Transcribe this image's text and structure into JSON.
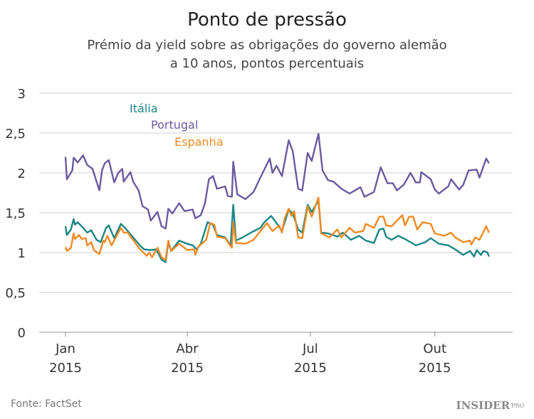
{
  "chart_data": {
    "type": "line",
    "title": "Ponto de pressão",
    "subtitle": [
      "Prémio da yield sobre as obrigações do governo alemão",
      "a 10 anos, pontos percentuais"
    ],
    "xlabel": "",
    "ylabel": "",
    "ylim": [
      0,
      3
    ],
    "xlim": [
      "2015-01-01",
      "2015-11-10"
    ],
    "grid": true,
    "legend_placement": "top-left, inline",
    "y_ticks": [
      {
        "value": 0,
        "label": "0"
      },
      {
        "value": 0.5,
        "label": "0,5"
      },
      {
        "value": 1,
        "label": "1"
      },
      {
        "value": 1.5,
        "label": "1,5"
      },
      {
        "value": 2,
        "label": "2"
      },
      {
        "value": 2.5,
        "label": "2,5"
      },
      {
        "value": 3,
        "label": "3"
      }
    ],
    "x_ticks": [
      {
        "date": "2015-01-01",
        "label": "Jan",
        "year": "2015"
      },
      {
        "date": "2015-04-01",
        "label": "Abr",
        "year": "2015"
      },
      {
        "date": "2015-07-01",
        "label": "Jul",
        "year": "2015"
      },
      {
        "date": "2015-10-01",
        "label": "Out",
        "year": "2015"
      }
    ],
    "series": [
      {
        "name": "Itália",
        "color": "#1b8585",
        "points": [
          [
            "2015-01-01",
            1.33
          ],
          [
            "2015-01-02",
            1.22
          ],
          [
            "2015-01-05",
            1.29
          ],
          [
            "2015-01-07",
            1.42
          ],
          [
            "2015-01-08",
            1.35
          ],
          [
            "2015-01-10",
            1.38
          ],
          [
            "2015-01-14",
            1.31
          ],
          [
            "2015-01-17",
            1.25
          ],
          [
            "2015-01-20",
            1.28
          ],
          [
            "2015-01-24",
            1.16
          ],
          [
            "2015-01-27",
            1.13
          ],
          [
            "2015-01-31",
            1.31
          ],
          [
            "2015-02-02",
            1.34
          ],
          [
            "2015-02-06",
            1.18
          ],
          [
            "2015-02-11",
            1.36
          ],
          [
            "2015-02-15",
            1.29
          ],
          [
            "2015-02-25",
            1.09
          ],
          [
            "2015-02-28",
            1.04
          ],
          [
            "2015-03-05",
            1.03
          ],
          [
            "2015-03-09",
            1.04
          ],
          [
            "2015-03-13",
            0.91
          ],
          [
            "2015-03-16",
            0.88
          ],
          [
            "2015-03-18",
            1.13
          ],
          [
            "2015-03-20",
            1.02
          ],
          [
            "2015-03-26",
            1.15
          ],
          [
            "2015-04-01",
            1.11
          ],
          [
            "2015-04-05",
            1.09
          ],
          [
            "2015-04-08",
            1.04
          ],
          [
            "2015-04-11",
            1.11
          ],
          [
            "2015-04-16",
            1.38
          ],
          [
            "2015-04-20",
            1.35
          ],
          [
            "2015-04-23",
            1.22
          ],
          [
            "2015-04-29",
            1.19
          ],
          [
            "2015-05-03",
            1.09
          ],
          [
            "2015-05-05",
            1.6
          ],
          [
            "2015-05-07",
            1.15
          ],
          [
            "2015-05-12",
            1.19
          ],
          [
            "2015-05-18",
            1.25
          ],
          [
            "2015-05-25",
            1.31
          ],
          [
            "2015-05-28",
            1.38
          ],
          [
            "2015-06-02",
            1.46
          ],
          [
            "2015-06-06",
            1.37
          ],
          [
            "2015-06-10",
            1.27
          ],
          [
            "2015-06-15",
            1.54
          ],
          [
            "2015-06-18",
            1.49
          ],
          [
            "2015-06-22",
            1.29
          ],
          [
            "2015-06-25",
            1.25
          ],
          [
            "2015-06-29",
            1.6
          ],
          [
            "2015-07-02",
            1.51
          ],
          [
            "2015-07-07",
            1.65
          ],
          [
            "2015-07-09",
            1.25
          ],
          [
            "2015-07-14",
            1.24
          ],
          [
            "2015-07-21",
            1.2
          ],
          [
            "2015-07-25",
            1.25
          ],
          [
            "2015-07-31",
            1.16
          ],
          [
            "2015-08-06",
            1.21
          ],
          [
            "2015-08-11",
            1.15
          ],
          [
            "2015-08-17",
            1.12
          ],
          [
            "2015-08-21",
            1.29
          ],
          [
            "2015-08-24",
            1.3
          ],
          [
            "2015-08-26",
            1.2
          ],
          [
            "2015-08-30",
            1.16
          ],
          [
            "2015-09-04",
            1.21
          ],
          [
            "2015-09-10",
            1.16
          ],
          [
            "2015-09-17",
            1.09
          ],
          [
            "2015-09-24",
            1.13
          ],
          [
            "2015-09-28",
            1.18
          ],
          [
            "2015-10-04",
            1.11
          ],
          [
            "2015-10-11",
            1.09
          ],
          [
            "2015-10-16",
            1.04
          ],
          [
            "2015-10-22",
            0.97
          ],
          [
            "2015-10-27",
            1.02
          ],
          [
            "2015-10-30",
            0.95
          ],
          [
            "2015-11-01",
            1.03
          ],
          [
            "2015-11-04",
            0.97
          ],
          [
            "2015-11-06",
            1.02
          ],
          [
            "2015-11-09",
            1.0
          ],
          [
            "2015-11-10",
            0.95
          ]
        ]
      },
      {
        "name": "Portugal",
        "color": "#6b5aa0",
        "points": [
          [
            "2015-01-01",
            2.2
          ],
          [
            "2015-01-02",
            1.92
          ],
          [
            "2015-01-06",
            2.03
          ],
          [
            "2015-01-07",
            2.19
          ],
          [
            "2015-01-10",
            2.13
          ],
          [
            "2015-01-14",
            2.22
          ],
          [
            "2015-01-17",
            2.1
          ],
          [
            "2015-01-21",
            2.05
          ],
          [
            "2015-01-26",
            1.78
          ],
          [
            "2015-01-28",
            2.03
          ],
          [
            "2015-01-30",
            2.12
          ],
          [
            "2015-02-02",
            2.16
          ],
          [
            "2015-02-06",
            1.88
          ],
          [
            "2015-02-09",
            2.0
          ],
          [
            "2015-02-12",
            2.05
          ],
          [
            "2015-02-13",
            1.89
          ],
          [
            "2015-02-18",
            2.01
          ],
          [
            "2015-02-20",
            1.89
          ],
          [
            "2015-02-24",
            1.78
          ],
          [
            "2015-02-27",
            1.58
          ],
          [
            "2015-03-03",
            1.54
          ],
          [
            "2015-03-05",
            1.4
          ],
          [
            "2015-03-10",
            1.51
          ],
          [
            "2015-03-13",
            1.33
          ],
          [
            "2015-03-16",
            1.3
          ],
          [
            "2015-03-18",
            1.55
          ],
          [
            "2015-03-21",
            1.49
          ],
          [
            "2015-03-26",
            1.62
          ],
          [
            "2015-03-30",
            1.52
          ],
          [
            "2015-04-05",
            1.54
          ],
          [
            "2015-04-07",
            1.43
          ],
          [
            "2015-04-11",
            1.47
          ],
          [
            "2015-04-14",
            1.61
          ],
          [
            "2015-04-17",
            1.92
          ],
          [
            "2015-04-20",
            1.96
          ],
          [
            "2015-04-23",
            1.8
          ],
          [
            "2015-04-29",
            1.83
          ],
          [
            "2015-05-01",
            1.71
          ],
          [
            "2015-05-04",
            1.7
          ],
          [
            "2015-05-05",
            2.14
          ],
          [
            "2015-05-08",
            1.73
          ],
          [
            "2015-05-14",
            1.67
          ],
          [
            "2015-05-20",
            1.76
          ],
          [
            "2015-05-25",
            1.94
          ],
          [
            "2015-06-01",
            2.18
          ],
          [
            "2015-06-03",
            2.0
          ],
          [
            "2015-06-06",
            2.09
          ],
          [
            "2015-06-10",
            1.96
          ],
          [
            "2015-06-15",
            2.41
          ],
          [
            "2015-06-18",
            2.27
          ],
          [
            "2015-06-22",
            1.8
          ],
          [
            "2015-06-25",
            1.78
          ],
          [
            "2015-06-29",
            2.25
          ],
          [
            "2015-07-02",
            2.15
          ],
          [
            "2015-07-07",
            2.49
          ],
          [
            "2015-07-10",
            2.03
          ],
          [
            "2015-07-14",
            1.91
          ],
          [
            "2015-07-18",
            1.89
          ],
          [
            "2015-07-24",
            1.8
          ],
          [
            "2015-07-30",
            1.74
          ],
          [
            "2015-08-07",
            1.82
          ],
          [
            "2015-08-10",
            1.7
          ],
          [
            "2015-08-17",
            1.76
          ],
          [
            "2015-08-22",
            2.07
          ],
          [
            "2015-08-27",
            1.87
          ],
          [
            "2015-08-31",
            1.87
          ],
          [
            "2015-09-03",
            1.78
          ],
          [
            "2015-09-08",
            1.85
          ],
          [
            "2015-09-13",
            2.0
          ],
          [
            "2015-09-17",
            1.88
          ],
          [
            "2015-09-20",
            1.88
          ],
          [
            "2015-09-21",
            2.01
          ],
          [
            "2015-09-28",
            1.92
          ],
          [
            "2015-10-01",
            1.79
          ],
          [
            "2015-10-04",
            1.74
          ],
          [
            "2015-10-11",
            1.83
          ],
          [
            "2015-10-13",
            1.92
          ],
          [
            "2015-10-19",
            1.79
          ],
          [
            "2015-10-22",
            1.85
          ],
          [
            "2015-10-26",
            2.03
          ],
          [
            "2015-11-01",
            2.04
          ],
          [
            "2015-11-03",
            1.94
          ],
          [
            "2015-11-08",
            2.18
          ],
          [
            "2015-11-10",
            2.12
          ]
        ]
      },
      {
        "name": "Espanha",
        "color": "#ee8a22",
        "points": [
          [
            "2015-01-01",
            1.07
          ],
          [
            "2015-01-02",
            1.02
          ],
          [
            "2015-01-05",
            1.06
          ],
          [
            "2015-01-07",
            1.24
          ],
          [
            "2015-01-08",
            1.17
          ],
          [
            "2015-01-11",
            1.22
          ],
          [
            "2015-01-13",
            1.17
          ],
          [
            "2015-01-16",
            1.18
          ],
          [
            "2015-01-17",
            1.09
          ],
          [
            "2015-01-20",
            1.13
          ],
          [
            "2015-01-22",
            1.03
          ],
          [
            "2015-01-26",
            0.98
          ],
          [
            "2015-01-29",
            1.15
          ],
          [
            "2015-01-30",
            1.13
          ],
          [
            "2015-02-01",
            1.21
          ],
          [
            "2015-02-04",
            1.09
          ],
          [
            "2015-02-11",
            1.31
          ],
          [
            "2015-02-13",
            1.25
          ],
          [
            "2015-02-16",
            1.25
          ],
          [
            "2015-02-25",
            1.04
          ],
          [
            "2015-03-02",
            0.96
          ],
          [
            "2015-03-04",
            1.0
          ],
          [
            "2015-03-06",
            0.94
          ],
          [
            "2015-03-10",
            1.06
          ],
          [
            "2015-03-13",
            0.94
          ],
          [
            "2015-03-16",
            0.91
          ],
          [
            "2015-03-18",
            1.15
          ],
          [
            "2015-03-20",
            1.02
          ],
          [
            "2015-03-26",
            1.11
          ],
          [
            "2015-04-01",
            1.03
          ],
          [
            "2015-04-06",
            1.04
          ],
          [
            "2015-04-07",
            0.97
          ],
          [
            "2015-04-09",
            1.07
          ],
          [
            "2015-04-15",
            1.16
          ],
          [
            "2015-04-18",
            1.37
          ],
          [
            "2015-04-21",
            1.35
          ],
          [
            "2015-04-23",
            1.2
          ],
          [
            "2015-04-29",
            1.18
          ],
          [
            "2015-05-04",
            1.06
          ],
          [
            "2015-05-05",
            1.38
          ],
          [
            "2015-05-07",
            1.12
          ],
          [
            "2015-05-14",
            1.11
          ],
          [
            "2015-05-20",
            1.16
          ],
          [
            "2015-05-27",
            1.31
          ],
          [
            "2015-05-30",
            1.37
          ],
          [
            "2015-06-03",
            1.27
          ],
          [
            "2015-06-08",
            1.34
          ],
          [
            "2015-06-10",
            1.25
          ],
          [
            "2015-06-12",
            1.43
          ],
          [
            "2015-06-15",
            1.55
          ],
          [
            "2015-06-17",
            1.46
          ],
          [
            "2015-06-19",
            1.52
          ],
          [
            "2015-06-22",
            1.19
          ],
          [
            "2015-06-25",
            1.18
          ],
          [
            "2015-06-29",
            1.58
          ],
          [
            "2015-07-02",
            1.45
          ],
          [
            "2015-07-07",
            1.69
          ],
          [
            "2015-07-09",
            1.24
          ],
          [
            "2015-07-15",
            1.19
          ],
          [
            "2015-07-21",
            1.29
          ],
          [
            "2015-07-24",
            1.19
          ],
          [
            "2015-07-30",
            1.31
          ],
          [
            "2015-08-03",
            1.25
          ],
          [
            "2015-08-09",
            1.27
          ],
          [
            "2015-08-11",
            1.36
          ],
          [
            "2015-08-17",
            1.31
          ],
          [
            "2015-08-21",
            1.45
          ],
          [
            "2015-08-24",
            1.45
          ],
          [
            "2015-08-26",
            1.34
          ],
          [
            "2015-08-30",
            1.33
          ],
          [
            "2015-09-07",
            1.47
          ],
          [
            "2015-09-09",
            1.34
          ],
          [
            "2015-09-12",
            1.45
          ],
          [
            "2015-09-15",
            1.45
          ],
          [
            "2015-09-18",
            1.29
          ],
          [
            "2015-09-22",
            1.38
          ],
          [
            "2015-09-28",
            1.36
          ],
          [
            "2015-10-01",
            1.24
          ],
          [
            "2015-10-08",
            1.21
          ],
          [
            "2015-10-13",
            1.25
          ],
          [
            "2015-10-16",
            1.19
          ],
          [
            "2015-10-22",
            1.13
          ],
          [
            "2015-10-27",
            1.15
          ],
          [
            "2015-10-28",
            1.1
          ],
          [
            "2015-10-31",
            1.19
          ],
          [
            "2015-11-03",
            1.16
          ],
          [
            "2015-11-08",
            1.33
          ],
          [
            "2015-11-10",
            1.25
          ]
        ]
      }
    ]
  },
  "source": "Fonte: FactSet",
  "logo": {
    "text": "INSIDER",
    "suffix": "PRO"
  }
}
